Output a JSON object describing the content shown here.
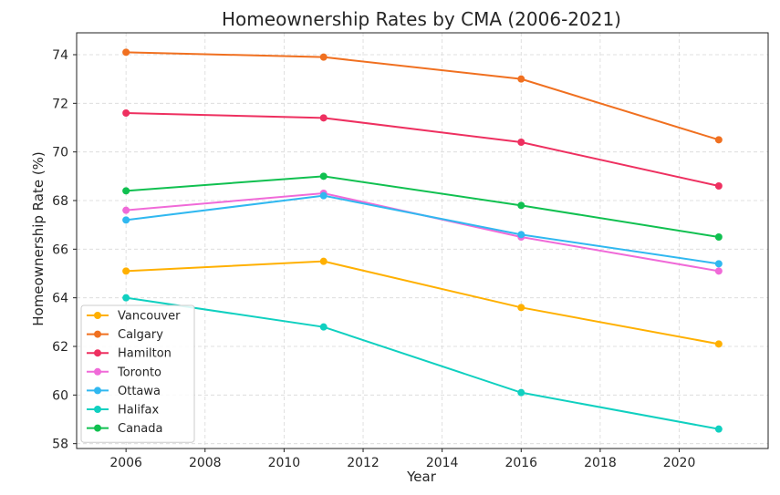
{
  "chart_data": {
    "type": "line",
    "title": "Homeownership Rates by CMA (2006-2021)",
    "xlabel": "Year",
    "ylabel": "Homeownership Rate (%)",
    "x": [
      2006,
      2011,
      2016,
      2021
    ],
    "xlim": [
      2004.75,
      2022.25
    ],
    "ylim": [
      57.8,
      74.9
    ],
    "x_ticks": [
      "2006",
      "2008",
      "2010",
      "2012",
      "2014",
      "2016",
      "2018",
      "2020"
    ],
    "y_ticks": [
      "58",
      "60",
      "62",
      "64",
      "66",
      "68",
      "70",
      "72",
      "74"
    ],
    "grid": true,
    "legend_position": "lower-left",
    "series": [
      {
        "name": "Vancouver",
        "color": "#ffb000",
        "values": [
          65.1,
          65.5,
          63.6,
          62.1
        ]
      },
      {
        "name": "Calgary",
        "color": "#f07020",
        "values": [
          74.1,
          73.9,
          73.0,
          70.5
        ]
      },
      {
        "name": "Hamilton",
        "color": "#ee3060",
        "values": [
          71.6,
          71.4,
          70.4,
          68.6
        ]
      },
      {
        "name": "Toronto",
        "color": "#f06ad8",
        "values": [
          67.6,
          68.3,
          66.5,
          65.1
        ]
      },
      {
        "name": "Ottawa",
        "color": "#30b8f0",
        "values": [
          67.2,
          68.2,
          66.6,
          65.4
        ]
      },
      {
        "name": "Halifax",
        "color": "#10d0c0",
        "values": [
          64.0,
          62.8,
          60.1,
          58.6
        ]
      },
      {
        "name": "Canada",
        "color": "#10c050",
        "values": [
          68.4,
          69.0,
          67.8,
          66.5
        ]
      }
    ]
  }
}
